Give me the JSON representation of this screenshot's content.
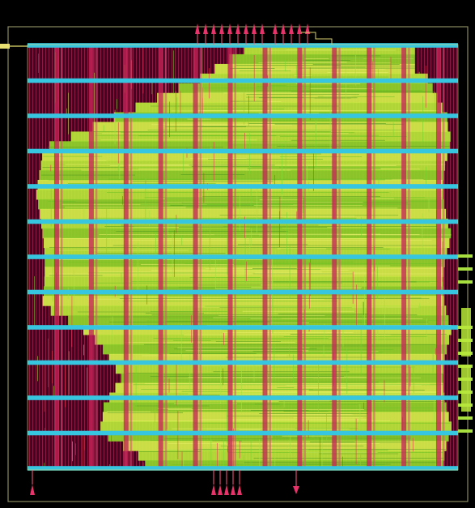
{
  "layout": {
    "background_color": "#000000",
    "die_outline_color": "#8a8a60",
    "core_fill_color": "#4a0a24",
    "power_stripe_color": "#36c6e0",
    "power_stripe_count": 13,
    "power_strap_color": "#c8245a",
    "power_strap_count": 12,
    "placed_logic_colors": [
      "#b8e83a",
      "#8fd52a",
      "#d4f04a"
    ],
    "signal_route_colors": [
      "#7ad62e",
      "#e8324e",
      "#a8e040"
    ],
    "io_pin_color": "#e8336a",
    "io_pin_groups": {
      "top": 14,
      "bottom": 6,
      "right": 12,
      "left": 1
    }
  }
}
